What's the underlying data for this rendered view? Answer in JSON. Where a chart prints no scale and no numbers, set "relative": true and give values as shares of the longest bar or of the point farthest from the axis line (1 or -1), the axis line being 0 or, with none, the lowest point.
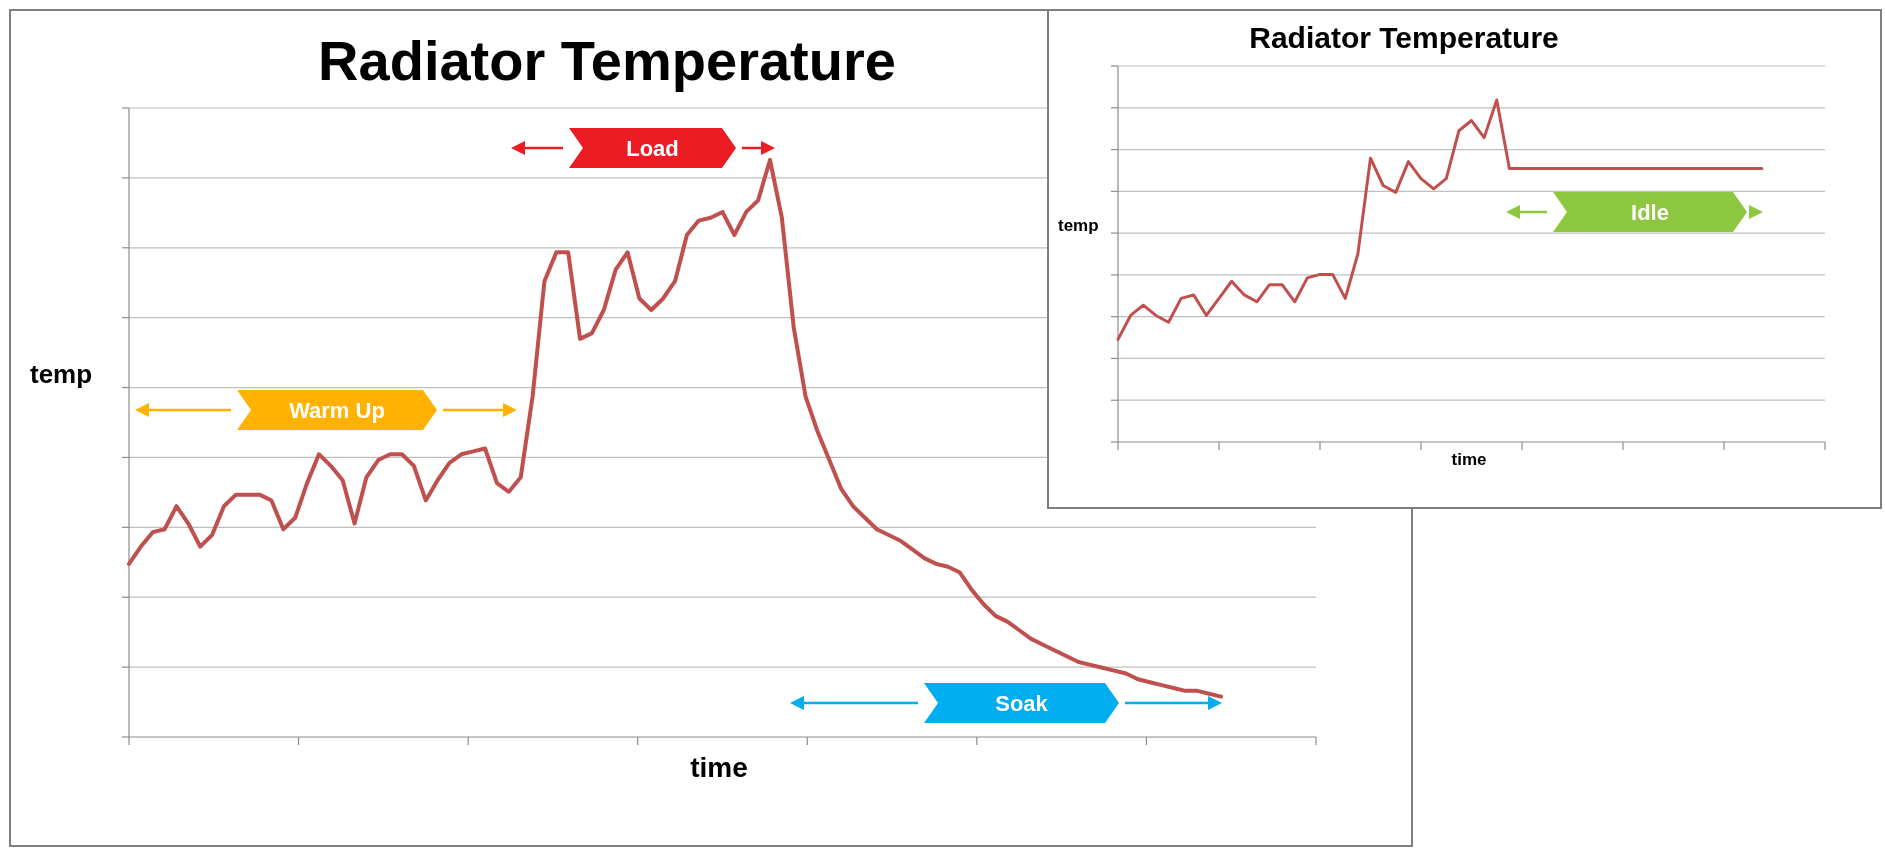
{
  "chart_data": [
    {
      "type": "line",
      "title": "Radiator Temperature",
      "xlabel": "time",
      "ylabel": "temp",
      "relative": true,
      "grid": "y",
      "annotations": [
        "Warm Up",
        "Load",
        "Soak"
      ],
      "categories": [
        null,
        null,
        null,
        null,
        null,
        null,
        null,
        null,
        null,
        null,
        null,
        null,
        null,
        null,
        null,
        null,
        null,
        null,
        null,
        null,
        null,
        null,
        null,
        null,
        null,
        null,
        null,
        null,
        null,
        null,
        null,
        null,
        null,
        null,
        null,
        null,
        null,
        null,
        null,
        null,
        null,
        null,
        null,
        null,
        null,
        null,
        null,
        null,
        null,
        null,
        null,
        null,
        null,
        null,
        null,
        null,
        null,
        null,
        null,
        null,
        null,
        null,
        null,
        null,
        null,
        null,
        null,
        null,
        null,
        null,
        null,
        null,
        null,
        null,
        null,
        null,
        null,
        null,
        null,
        null,
        null,
        null,
        null,
        null,
        null,
        null,
        null,
        null,
        null,
        null,
        null,
        null,
        null,
        null,
        null,
        null,
        null,
        null,
        null,
        null,
        null
      ],
      "series": [
        {
          "color": "#c0504d",
          "values": [
            0.3,
            0.33,
            0.355,
            0.36,
            0.4,
            0.37,
            0.33,
            0.35,
            0.4,
            0.42,
            0.42,
            0.42,
            0.41,
            0.36,
            0.38,
            0.44,
            0.49,
            0.47,
            0.445,
            0.37,
            0.45,
            0.48,
            0.49,
            0.49,
            0.47,
            0.41,
            0.445,
            0.475,
            0.49,
            0.495,
            0.5,
            0.44,
            0.425,
            0.45,
            0.59,
            0.79,
            0.84,
            0.84,
            0.69,
            0.7,
            0.74,
            0.81,
            0.84,
            0.76,
            0.74,
            0.76,
            0.79,
            0.87,
            0.895,
            0.9,
            0.91,
            0.87,
            0.91,
            0.93,
            1.0,
            0.9,
            0.71,
            0.59,
            0.53,
            0.48,
            0.43,
            0.4,
            0.38,
            0.36,
            0.35,
            0.34,
            0.325,
            0.31,
            0.3,
            0.295,
            0.285,
            0.255,
            0.23,
            0.21,
            0.2,
            0.185,
            0.17,
            0.16,
            0.15,
            0.14,
            0.13,
            0.125,
            0.12,
            0.115,
            0.11,
            0.1,
            0.095,
            0.09,
            0.085,
            0.08,
            0.08,
            0.075,
            0.07,
            null,
            null,
            null,
            null,
            null,
            null,
            null,
            null
          ]
        }
      ]
    },
    {
      "type": "line",
      "title": "Radiator Temperature",
      "xlabel": "time",
      "ylabel": "temp",
      "relative": true,
      "grid": "y",
      "annotations": [
        "Idle"
      ],
      "categories": [
        null,
        null,
        null,
        null,
        null,
        null,
        null,
        null,
        null,
        null,
        null,
        null,
        null,
        null,
        null,
        null,
        null,
        null,
        null,
        null,
        null,
        null,
        null,
        null,
        null,
        null,
        null,
        null,
        null,
        null,
        null,
        null,
        null,
        null,
        null,
        null,
        null,
        null,
        null,
        null,
        null,
        null,
        null,
        null,
        null,
        null,
        null,
        null,
        null,
        null,
        null,
        null,
        null,
        null,
        null,
        null,
        null
      ],
      "series": [
        {
          "color": "#c0504d",
          "values": [
            0.3,
            0.37,
            0.4,
            0.37,
            0.35,
            0.42,
            0.43,
            0.37,
            0.42,
            0.47,
            0.43,
            0.41,
            0.46,
            0.46,
            0.41,
            0.48,
            0.49,
            0.49,
            0.42,
            0.55,
            0.83,
            0.75,
            0.73,
            0.82,
            0.77,
            0.74,
            0.77,
            0.91,
            0.94,
            0.89,
            1.0,
            0.8,
            0.8,
            0.8,
            0.8,
            0.8,
            0.8,
            0.8,
            0.8,
            0.8,
            0.8,
            0.8,
            0.8,
            0.8,
            0.8,
            0.8,
            0.8,
            0.8,
            0.8,
            0.8,
            0.8,
            0.8,
            null,
            null,
            null,
            null,
            null
          ]
        }
      ]
    }
  ]
}
